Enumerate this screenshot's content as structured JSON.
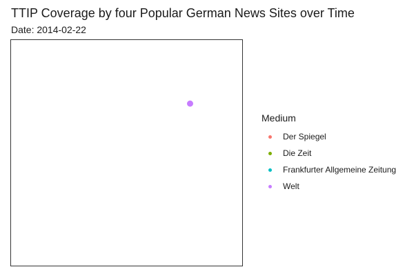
{
  "title": "TTIP Coverage by four Popular German News Sites over Time",
  "subtitle": "Date: 2014-02-22",
  "chart_data": {
    "type": "scatter",
    "title": "TTIP Coverage by four Popular German News Sites over Time",
    "subtitle": "Date: 2014-02-22",
    "xlabel": "",
    "ylabel": "",
    "grid": false,
    "legend_placement": "right",
    "legend_title": "Medium",
    "series": [
      {
        "name": "Der Spiegel",
        "color": "#F8766D",
        "points": []
      },
      {
        "name": "Die Zeit",
        "color": "#7CAE00",
        "points": []
      },
      {
        "name": "Frankfurter Allgemeine Zeitung",
        "color": "#00BFC4",
        "points": []
      },
      {
        "name": "Welt",
        "color": "#C77CFF",
        "points": [
          {
            "x": 0.77,
            "y": 0.72
          }
        ]
      }
    ],
    "xlim": [
      0,
      1
    ],
    "ylim": [
      0,
      1
    ]
  }
}
